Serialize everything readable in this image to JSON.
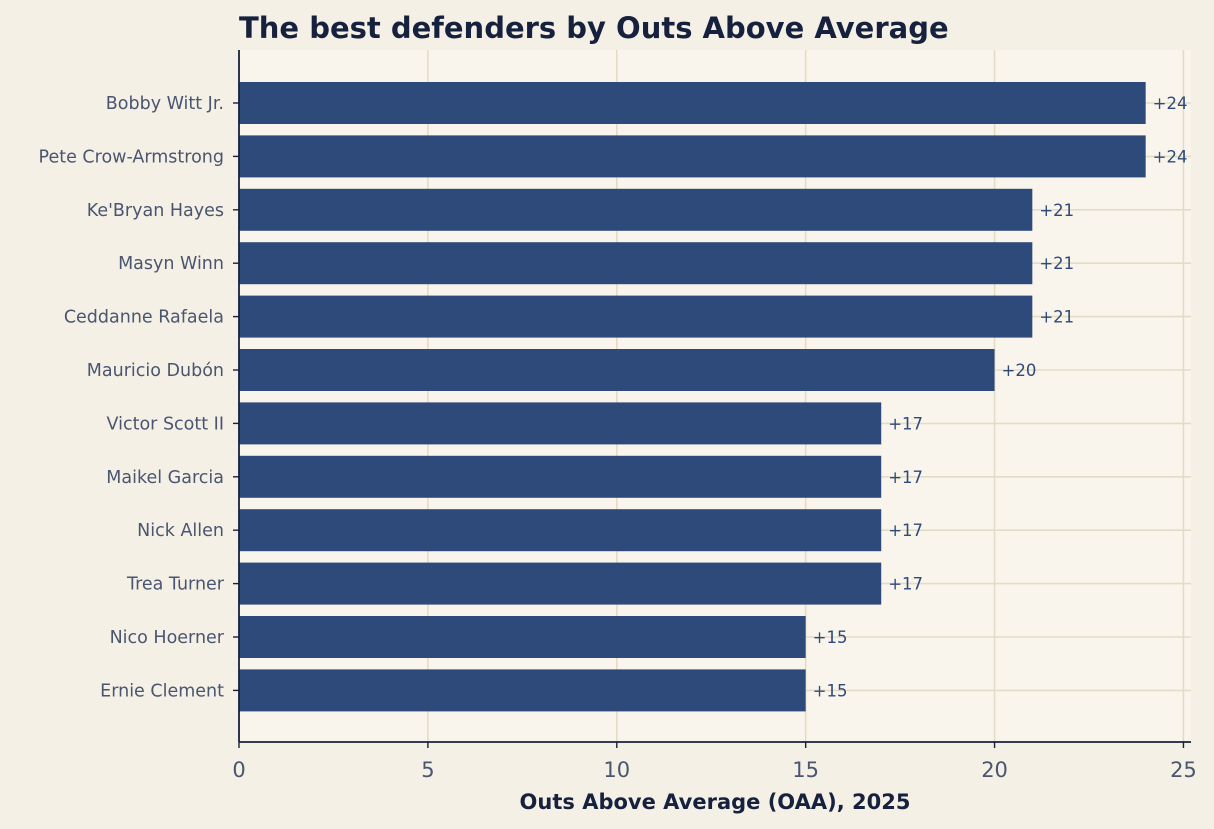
{
  "chart_data": {
    "type": "bar",
    "orientation": "horizontal",
    "title": "The best defenders by Outs Above Average",
    "xlabel": "Outs Above Average (OAA), 2025",
    "ylabel": "",
    "xlim": [
      0,
      25.2
    ],
    "xticks": [
      0,
      5,
      10,
      15,
      20,
      25
    ],
    "grid": true,
    "categories": [
      "Bobby Witt Jr.",
      "Pete Crow-Armstrong",
      "Ke'Bryan Hayes",
      "Masyn Winn",
      "Ceddanne Rafaela",
      "Mauricio Dubón",
      "Victor Scott II",
      "Maikel Garcia",
      "Nick Allen",
      "Trea Turner",
      "Nico Hoerner",
      "Ernie Clement"
    ],
    "values": [
      24,
      24,
      21,
      21,
      21,
      20,
      17,
      17,
      17,
      17,
      15,
      15
    ],
    "data_labels": [
      "+24",
      "+24",
      "+21",
      "+21",
      "+21",
      "+20",
      "+17",
      "+17",
      "+17",
      "+17",
      "+15",
      "+15"
    ],
    "colors": {
      "bar": "#2d4a7a",
      "page_background": "#f5f0e6",
      "plot_background": "#faf5ec",
      "grid": "#e2dcc4",
      "axis": "#16213e",
      "title": "#16213e",
      "tick_label": "#4a5570",
      "data_label": "#2d4a7a"
    }
  }
}
